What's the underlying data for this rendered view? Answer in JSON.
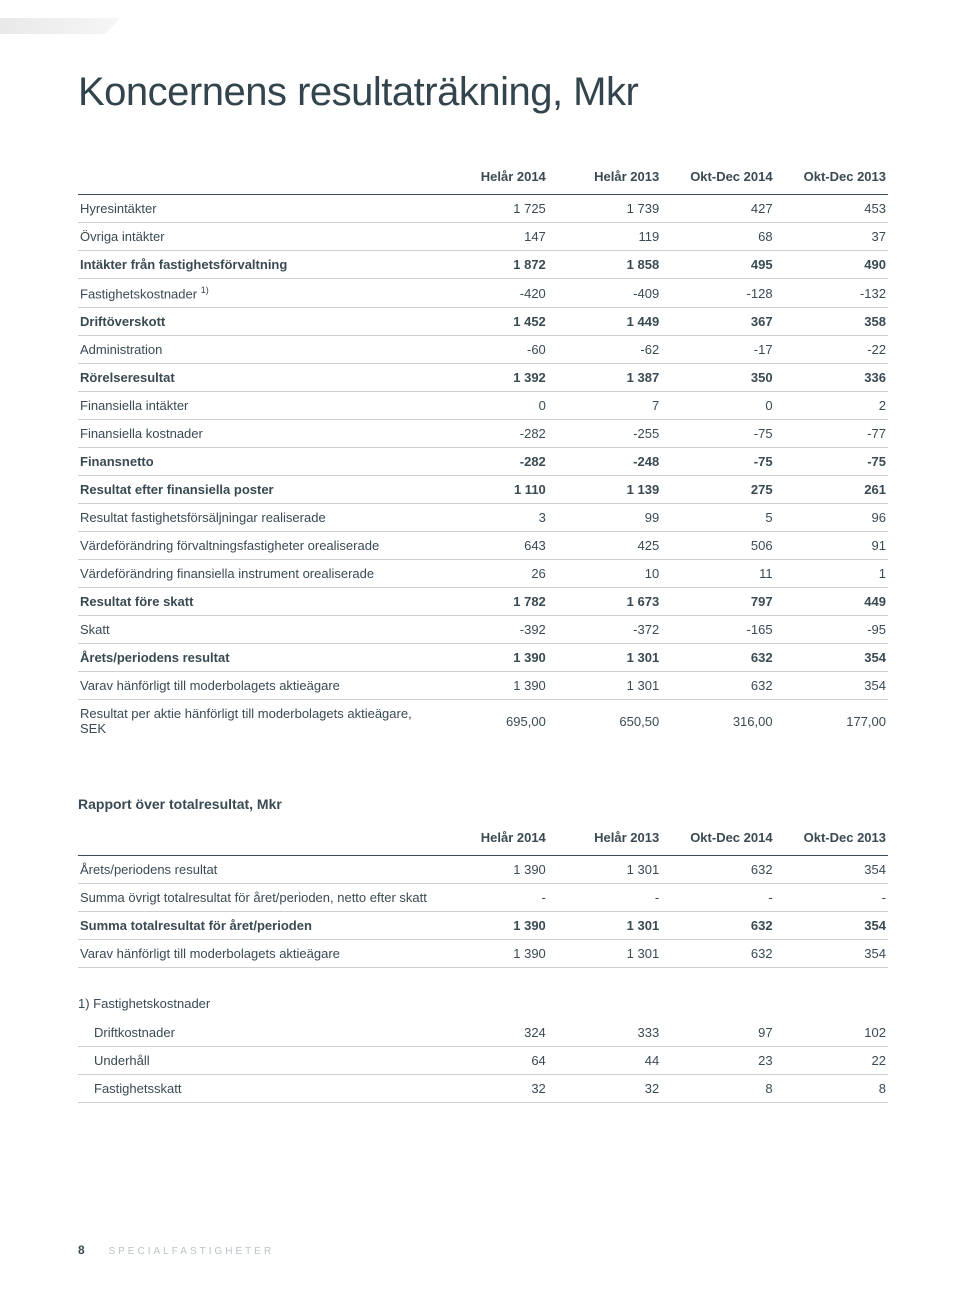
{
  "title": "Koncernens resultaträkning, Mkr",
  "columns": [
    "Helår 2014",
    "Helår 2013",
    "Okt-Dec 2014",
    "Okt-Dec 2013"
  ],
  "rows": [
    {
      "label": "Hyresintäkter",
      "v": [
        "1 725",
        "1 739",
        "427",
        "453"
      ],
      "bold": false
    },
    {
      "label": "Övriga intäkter",
      "v": [
        "147",
        "119",
        "68",
        "37"
      ],
      "bold": false
    },
    {
      "label": "Intäkter från fastighetsförvaltning",
      "v": [
        "1 872",
        "1 858",
        "495",
        "490"
      ],
      "bold": true
    },
    {
      "label": "Fastighetskostnader ",
      "sup": "1)",
      "v": [
        "-420",
        "-409",
        "-128",
        "-132"
      ],
      "bold": false
    },
    {
      "label": "Driftöverskott",
      "v": [
        "1 452",
        "1 449",
        "367",
        "358"
      ],
      "bold": true
    },
    {
      "label": "Administration",
      "v": [
        "-60",
        "-62",
        "-17",
        "-22"
      ],
      "bold": false
    },
    {
      "label": "Rörelseresultat",
      "v": [
        "1 392",
        "1 387",
        "350",
        "336"
      ],
      "bold": true
    },
    {
      "label": "Finansiella intäkter",
      "v": [
        "0",
        "7",
        "0",
        "2"
      ],
      "bold": false
    },
    {
      "label": "Finansiella kostnader",
      "v": [
        "-282",
        "-255",
        "-75",
        "-77"
      ],
      "bold": false
    },
    {
      "label": "Finansnetto",
      "v": [
        "-282",
        "-248",
        "-75",
        "-75"
      ],
      "bold": true
    },
    {
      "label": "Resultat efter finansiella poster",
      "v": [
        "1 110",
        "1 139",
        "275",
        "261"
      ],
      "bold": true
    },
    {
      "label": "Resultat fastighetsförsäljningar realiserade",
      "v": [
        "3",
        "99",
        "5",
        "96"
      ],
      "bold": false
    },
    {
      "label": "Värdeförändring förvaltningsfastigheter orealiserade",
      "v": [
        "643",
        "425",
        "506",
        "91"
      ],
      "bold": false
    },
    {
      "label": "Värdeförändring finansiella instrument orealiserade",
      "v": [
        "26",
        "10",
        "11",
        "1"
      ],
      "bold": false
    },
    {
      "label": "Resultat före skatt",
      "v": [
        "1 782",
        "1 673",
        "797",
        "449"
      ],
      "bold": true
    },
    {
      "label": "Skatt",
      "v": [
        "-392",
        "-372",
        "-165",
        "-95"
      ],
      "bold": false
    },
    {
      "label": "Årets/periodens resultat",
      "v": [
        "1 390",
        "1 301",
        "632",
        "354"
      ],
      "bold": true
    },
    {
      "label": "Varav hänförligt till moderbolagets aktieägare",
      "v": [
        "1 390",
        "1 301",
        "632",
        "354"
      ],
      "bold": false
    },
    {
      "label": "Resultat per aktie hänförligt till moderbolagets aktieägare, SEK",
      "v": [
        "695,00",
        "650,50",
        "316,00",
        "177,00"
      ],
      "bold": false,
      "noborder": true
    }
  ],
  "section2": {
    "title": "Rapport över totalresultat, Mkr",
    "columns": [
      "Helår 2014",
      "Helår 2013",
      "Okt-Dec 2014",
      "Okt-Dec  2013"
    ],
    "rows": [
      {
        "label": "Årets/periodens resultat",
        "v": [
          "1 390",
          "1 301",
          "632",
          "354"
        ],
        "bold": false
      },
      {
        "label": "Summa övrigt totalresultat för året/perioden, netto efter skatt",
        "v": [
          "-",
          "-",
          "-",
          "-"
        ],
        "bold": false
      },
      {
        "label": "Summa totalresultat för året/perioden",
        "v": [
          "1 390",
          "1 301",
          "632",
          "354"
        ],
        "bold": true
      },
      {
        "label": "Varav hänförligt till moderbolagets aktieägare",
        "v": [
          "1 390",
          "1 301",
          "632",
          "354"
        ],
        "bold": false
      }
    ]
  },
  "footnote": {
    "title": "1) Fastighetskostnader",
    "rows": [
      {
        "label": "Driftkostnader",
        "v": [
          "324",
          "333",
          "97",
          "102"
        ]
      },
      {
        "label": "Underhåll",
        "v": [
          "64",
          "44",
          "23",
          "22"
        ]
      },
      {
        "label": "Fastighetsskatt",
        "v": [
          "32",
          "32",
          "8",
          "8"
        ]
      }
    ]
  },
  "footer": {
    "page": "8",
    "brand": "SPECIALFASTIGHETER"
  }
}
